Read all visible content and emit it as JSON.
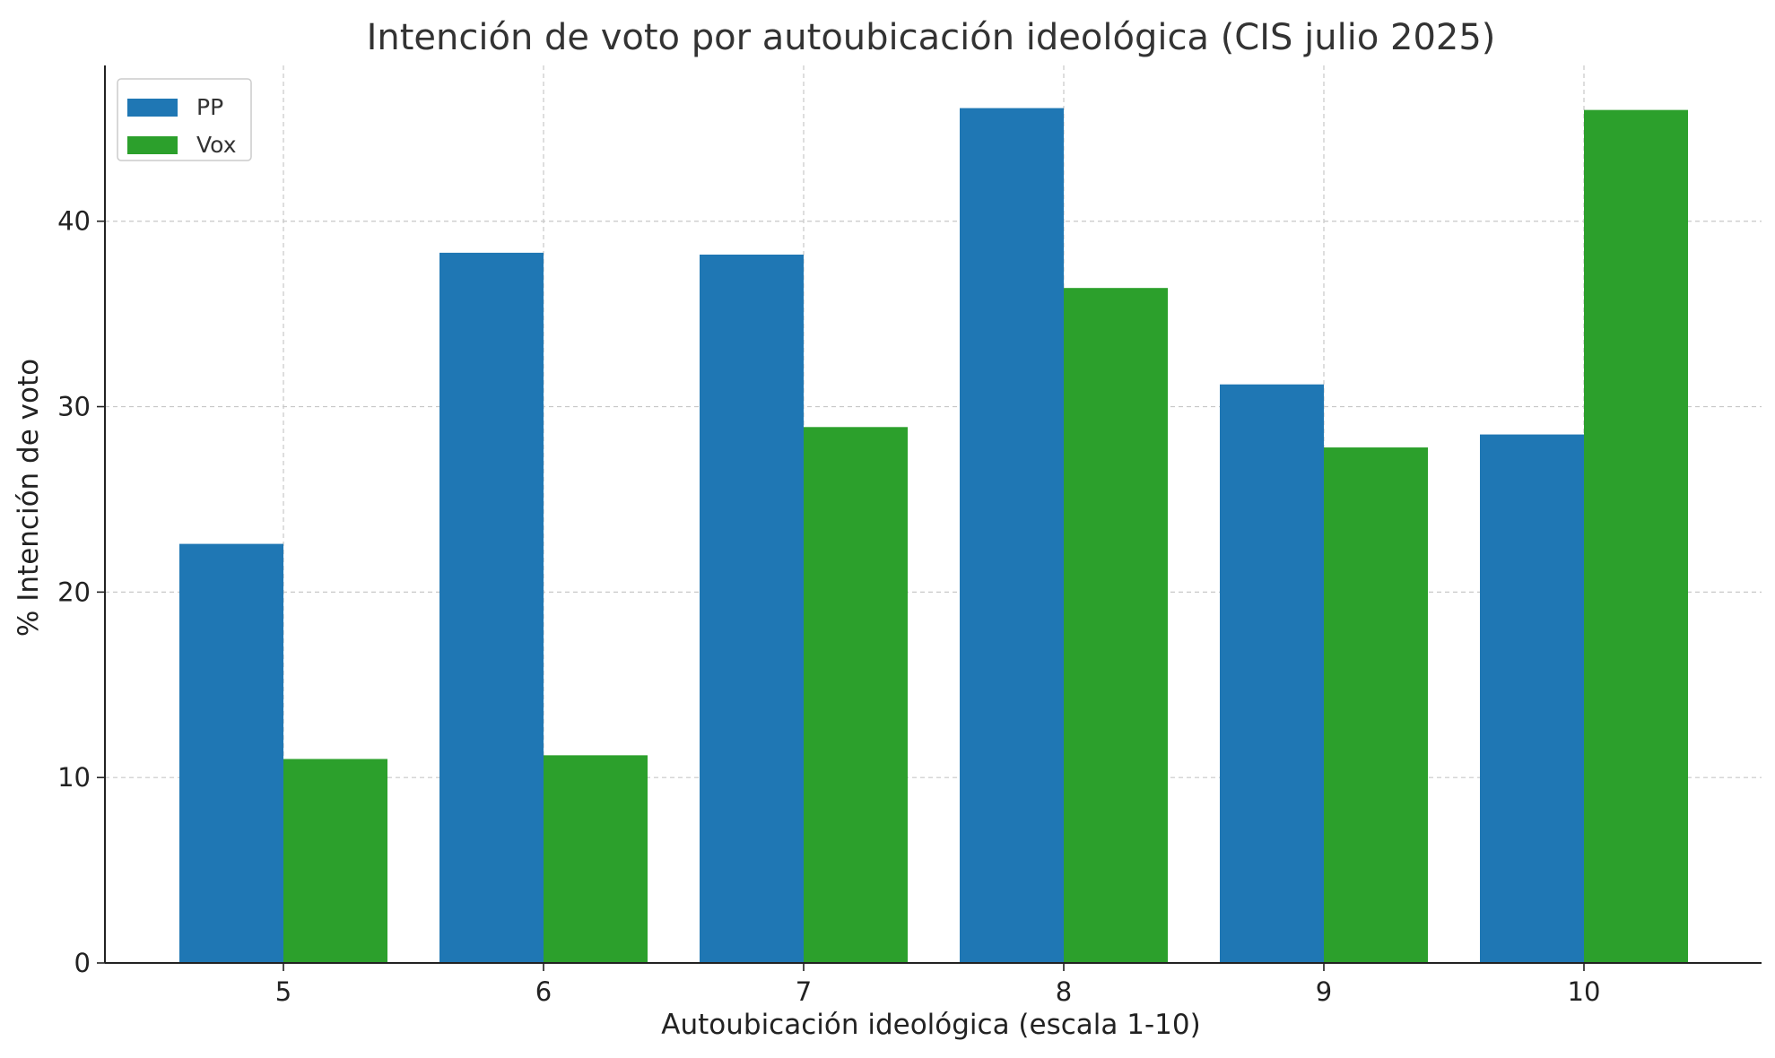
{
  "chart_data": {
    "type": "bar",
    "title": "Intención de voto por autoubicación ideológica (CIS julio 2025)",
    "xlabel": "Autoubicación ideológica (escala 1-10)",
    "ylabel": "% Intención de voto",
    "categories": [
      "5",
      "6",
      "7",
      "8",
      "9",
      "10"
    ],
    "series": [
      {
        "name": "PP",
        "color": "#1f77b4",
        "values": [
          22.6,
          38.3,
          38.2,
          46.1,
          31.2,
          28.5
        ]
      },
      {
        "name": "Vox",
        "color": "#2ca02c",
        "values": [
          11.0,
          11.2,
          28.9,
          36.4,
          27.8,
          46.0
        ]
      }
    ],
    "ylim": [
      0,
      48.4
    ],
    "yticks": [
      0,
      10,
      20,
      30,
      40
    ],
    "grid": true,
    "legend": "top-left"
  }
}
